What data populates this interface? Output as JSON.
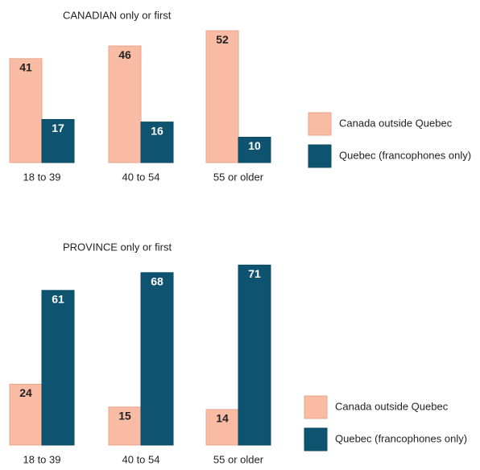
{
  "chart_data": [
    {
      "type": "bar",
      "title": "CANADIAN only or first",
      "categories": [
        "18 to 39",
        "40 to 54",
        "55 or older"
      ],
      "series": [
        {
          "name": "Canada outside Quebec",
          "color": "#f9bba4",
          "values": [
            41,
            46,
            52
          ]
        },
        {
          "name": "Quebec (francophones only)",
          "color": "#0e5470",
          "values": [
            17,
            16,
            10
          ]
        }
      ]
    },
    {
      "type": "bar",
      "title": "PROVINCE only or first",
      "categories": [
        "18 to 39",
        "40 to 54",
        "55 or older"
      ],
      "series": [
        {
          "name": "Canada outside Quebec",
          "color": "#f9bba4",
          "values": [
            24,
            15,
            14
          ]
        },
        {
          "name": "Quebec (francophones only)",
          "color": "#0e5470",
          "values": [
            61,
            68,
            71
          ]
        }
      ]
    }
  ]
}
